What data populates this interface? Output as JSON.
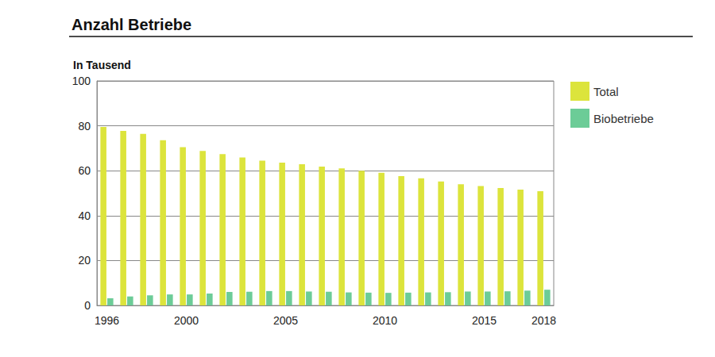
{
  "chart_data": {
    "type": "bar",
    "title": "Anzahl Betriebe",
    "subtitle": "In Tausend",
    "categories": [
      "1996",
      null,
      null,
      null,
      "2000",
      null,
      null,
      null,
      null,
      "2005",
      null,
      null,
      null,
      null,
      "2010",
      null,
      null,
      null,
      null,
      "2015",
      null,
      null,
      "2018"
    ],
    "series": [
      {
        "name": "Total",
        "color": "#dce43c",
        "values": [
          79.5,
          77.7,
          76.4,
          73.6,
          70.5,
          68.8,
          67.4,
          65.9,
          64.5,
          63.6,
          62.9,
          61.8,
          61.0,
          60.0,
          59.1,
          57.6,
          56.6,
          55.2,
          54.0,
          53.2,
          52.3,
          51.6,
          50.9
        ]
      },
      {
        "name": "Biobetriebe",
        "color": "#6ccc97",
        "values": [
          3.2,
          4.0,
          4.5,
          4.9,
          4.9,
          5.3,
          6.0,
          6.1,
          6.4,
          6.4,
          6.2,
          6.1,
          5.8,
          5.7,
          5.6,
          5.7,
          5.8,
          5.9,
          6.2,
          6.2,
          6.3,
          6.6,
          7.0
        ]
      }
    ],
    "ylim": [
      0,
      100
    ],
    "yticks": [
      0,
      20,
      40,
      60,
      80,
      100
    ],
    "grid": true,
    "legend": "right"
  }
}
